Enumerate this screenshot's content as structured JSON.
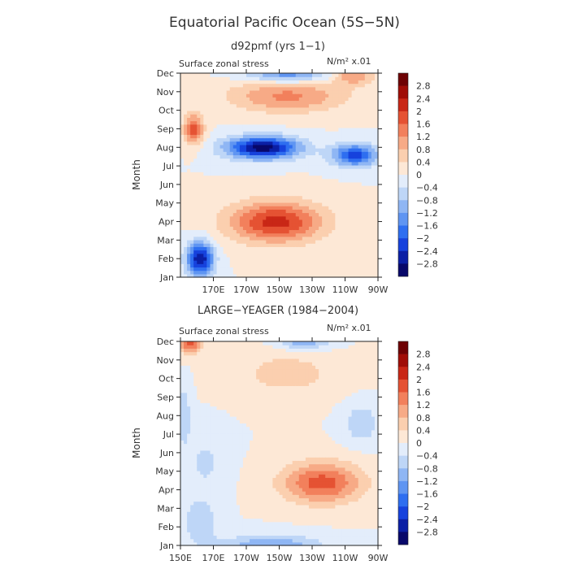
{
  "figure": {
    "title": "Equatorial Pacific Ocean (5S−5N)"
  },
  "chart_data": [
    {
      "type": "heatmap",
      "title": "d92pmf (yrs 1−1)",
      "subtitle": "Surface zonal stress",
      "units_label": "N/m² x.01",
      "ylabel": "Month",
      "xlabel": "",
      "x_range_deg_east": [
        150,
        270
      ],
      "x_ticks": [
        {
          "value": 170,
          "label": "170E"
        },
        {
          "value": 190,
          "label": "170W"
        },
        {
          "value": 210,
          "label": "150W"
        },
        {
          "value": 230,
          "label": "130W"
        },
        {
          "value": 250,
          "label": "110W"
        },
        {
          "value": 270,
          "label": "90W"
        }
      ],
      "y_ticks": [
        "Jan",
        "Feb",
        "Mar",
        "Apr",
        "May",
        "Jun",
        "Jul",
        "Aug",
        "Sep",
        "Oct",
        "Nov",
        "Dec"
      ],
      "features": [
        {
          "name": "feb-westerly-anomaly",
          "lon": 162,
          "month": 2.0,
          "value": -2.8,
          "lon_halfwidth": 8,
          "month_halfwidth": 0.9
        },
        {
          "name": "apr-easterly-max",
          "lon": 208,
          "month": 4.0,
          "value": 2.2,
          "lon_halfwidth": 28,
          "month_halfwidth": 1.1
        },
        {
          "name": "aug-westerly-min",
          "lon": 200,
          "month": 8.0,
          "value": -3.0,
          "lon_halfwidth": 22,
          "month_halfwidth": 0.6
        },
        {
          "name": "jul-far-east-min",
          "lon": 256,
          "month": 7.6,
          "value": -2.2,
          "lon_halfwidth": 14,
          "month_halfwidth": 0.6
        },
        {
          "name": "sep-west-positive",
          "lon": 158,
          "month": 9.0,
          "value": 1.8,
          "lon_halfwidth": 6,
          "month_halfwidth": 0.8
        },
        {
          "name": "oct-central-positive",
          "lon": 215,
          "month": 10.8,
          "value": 1.3,
          "lon_halfwidth": 35,
          "month_halfwidth": 0.9
        },
        {
          "name": "dec-central-negative",
          "lon": 215,
          "month": 12.0,
          "value": -1.6,
          "lon_halfwidth": 25,
          "month_halfwidth": 0.5
        },
        {
          "name": "dec-east-positive",
          "lon": 255,
          "month": 11.9,
          "value": 1.2,
          "lon_halfwidth": 12,
          "month_halfwidth": 0.5
        }
      ],
      "colorbar": {
        "levels": [
          -2.8,
          -2.4,
          -2,
          -1.6,
          -1.2,
          -0.8,
          -0.4,
          0,
          0.4,
          0.8,
          1.2,
          1.6,
          2,
          2.4,
          2.8
        ],
        "labels": [
          "2.8",
          "2.4",
          "2",
          "1.6",
          "1.2",
          "0.8",
          "0.4",
          "0",
          "−0.4",
          "−0.8",
          "−1.2",
          "−1.6",
          "−2",
          "−2.4",
          "−2.8"
        ]
      }
    },
    {
      "type": "heatmap",
      "title": "LARGE−YEAGER (1984−2004)",
      "subtitle": "Surface zonal stress",
      "units_label": "N/m² x.01",
      "ylabel": "Month",
      "xlabel": "",
      "x_range_deg_east": [
        150,
        270
      ],
      "x_ticks": [
        {
          "value": 150,
          "label": "150E"
        },
        {
          "value": 170,
          "label": "170E"
        },
        {
          "value": 190,
          "label": "170W"
        },
        {
          "value": 210,
          "label": "150W"
        },
        {
          "value": 230,
          "label": "130W"
        },
        {
          "value": 250,
          "label": "110W"
        },
        {
          "value": 270,
          "label": "90W"
        }
      ],
      "y_ticks": [
        "Jan",
        "Feb",
        "Mar",
        "Apr",
        "May",
        "Jun",
        "Jul",
        "Aug",
        "Sep",
        "Oct",
        "Nov",
        "Dec"
      ],
      "features": [
        {
          "name": "dec-west-positive",
          "lon": 156,
          "month": 12.0,
          "value": 2.0,
          "lon_halfwidth": 6,
          "month_halfwidth": 0.6
        },
        {
          "name": "apr-easterly-max",
          "lon": 236,
          "month": 4.4,
          "value": 1.8,
          "lon_halfwidth": 24,
          "month_halfwidth": 1.1
        },
        {
          "name": "jan-central-negative",
          "lon": 205,
          "month": 1.0,
          "value": -1.2,
          "lon_halfwidth": 30,
          "month_halfwidth": 0.6
        },
        {
          "name": "feb-west-negative",
          "lon": 162,
          "month": 2.3,
          "value": -0.8,
          "lon_halfwidth": 10,
          "month_halfwidth": 1.2
        },
        {
          "name": "dec-central-negative",
          "lon": 225,
          "month": 12.0,
          "value": -1.2,
          "lon_halfwidth": 15,
          "month_halfwidth": 0.4
        },
        {
          "name": "aug-west-negative",
          "lon": 152,
          "month": 8.0,
          "value": -0.8,
          "lon_halfwidth": 4,
          "month_halfwidth": 1.5
        },
        {
          "name": "aug-east-negative",
          "lon": 260,
          "month": 7.6,
          "value": -0.8,
          "lon_halfwidth": 10,
          "month_halfwidth": 1.0
        },
        {
          "name": "oct-central-positive",
          "lon": 215,
          "month": 10.3,
          "value": 0.6,
          "lon_halfwidth": 30,
          "month_halfwidth": 1.2
        },
        {
          "name": "jun-west-negative",
          "lon": 165,
          "month": 5.5,
          "value": -0.5,
          "lon_halfwidth": 12,
          "month_halfwidth": 1.5
        }
      ],
      "colorbar": {
        "levels": [
          -2.8,
          -2.4,
          -2,
          -1.6,
          -1.2,
          -0.8,
          -0.4,
          0,
          0.4,
          0.8,
          1.2,
          1.6,
          2,
          2.4,
          2.8
        ],
        "labels": [
          "2.8",
          "2.4",
          "2",
          "1.6",
          "1.2",
          "0.8",
          "0.4",
          "0",
          "−0.4",
          "−0.8",
          "−1.2",
          "−1.6",
          "−2",
          "−2.4",
          "−2.8"
        ]
      }
    }
  ],
  "colors": {
    "palette": [
      "#08086a",
      "#0b1fa5",
      "#1642dd",
      "#2e6ef0",
      "#5f95f2",
      "#8fb6f4",
      "#bed6f7",
      "#e3edfb",
      "#fde8d6",
      "#fbcfaf",
      "#f7aa86",
      "#f2805c",
      "#e55233",
      "#c92716",
      "#a00d07",
      "#6e0204"
    ],
    "text": "#333333",
    "axis": "#222222"
  }
}
